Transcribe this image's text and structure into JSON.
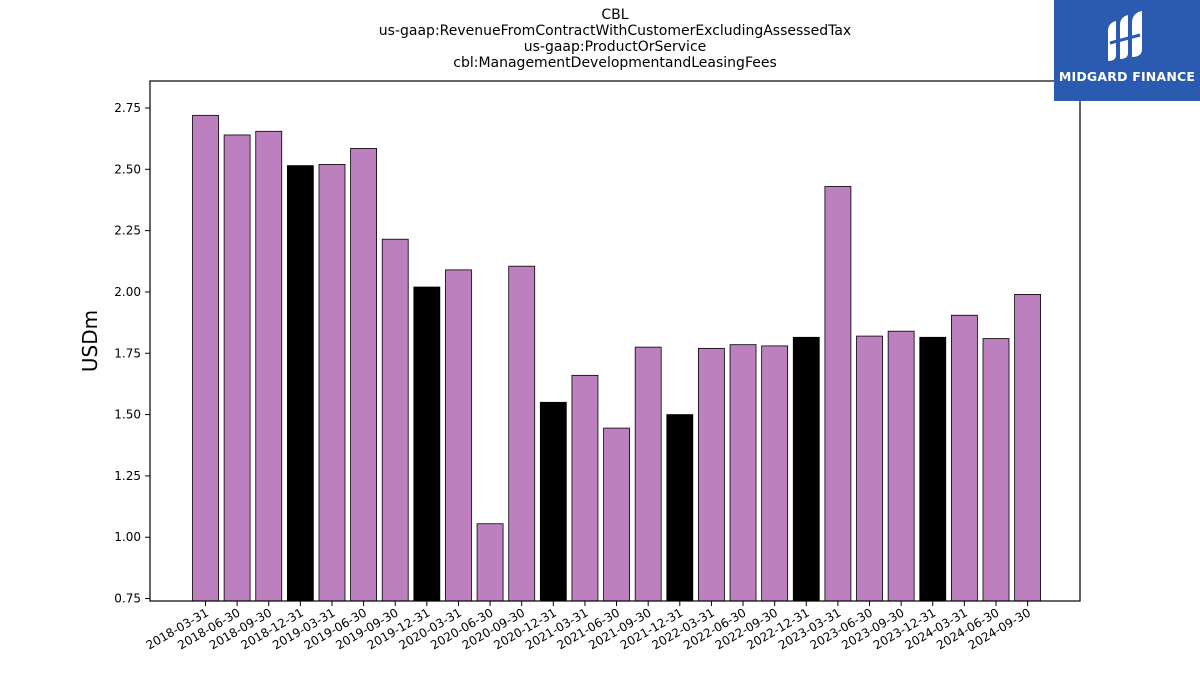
{
  "title_lines": [
    "CBL",
    "us-gaap:RevenueFromContractWithCustomerExcludingAssessedTax",
    "us-gaap:ProductOrService",
    "cbl:ManagementDevelopmentandLeasingFees"
  ],
  "logo": {
    "text": "MIDGARD FINANCE",
    "background": "#2b5bb0"
  },
  "chart_data": {
    "type": "bar",
    "ylabel": "USDm",
    "xlabel": "",
    "ylim": [
      0.74,
      2.86
    ],
    "yticks": [
      "0.75",
      "1.00",
      "1.25",
      "1.50",
      "1.75",
      "2.00",
      "2.25",
      "2.50",
      "2.75"
    ],
    "categories": [
      "2018-03-31",
      "2018-06-30",
      "2018-09-30",
      "2018-12-31",
      "2019-03-31",
      "2019-06-30",
      "2019-09-30",
      "2019-12-31",
      "2020-03-31",
      "2020-06-30",
      "2020-09-30",
      "2020-12-31",
      "2021-03-31",
      "2021-06-30",
      "2021-09-30",
      "2021-12-31",
      "2022-03-31",
      "2022-06-30",
      "2022-09-30",
      "2022-12-31",
      "2023-03-31",
      "2023-06-30",
      "2023-09-30",
      "2023-12-31",
      "2024-03-31",
      "2024-06-30",
      "2024-09-30"
    ],
    "values": [
      2.72,
      2.64,
      2.655,
      2.515,
      2.52,
      2.585,
      2.215,
      2.02,
      2.09,
      1.055,
      2.105,
      1.55,
      1.66,
      1.445,
      1.775,
      1.5,
      1.77,
      1.785,
      1.78,
      1.815,
      2.43,
      1.82,
      1.84,
      1.815,
      1.905,
      1.81,
      1.99
    ],
    "year_end": [
      false,
      false,
      false,
      true,
      false,
      false,
      false,
      true,
      false,
      false,
      false,
      true,
      false,
      false,
      false,
      true,
      false,
      false,
      false,
      true,
      false,
      false,
      false,
      true,
      false,
      false,
      false
    ],
    "colors": {
      "quarter": "#bb80bd",
      "year_end": "#000000",
      "edge": "#000000"
    },
    "grid": false,
    "legend": "none"
  }
}
